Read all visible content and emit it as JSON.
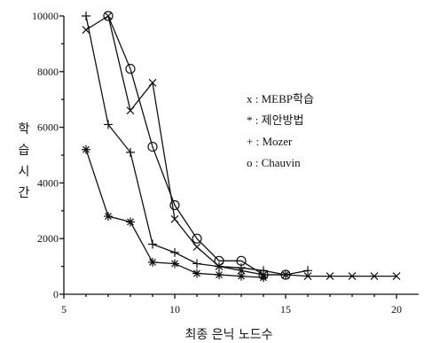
{
  "chart_data": {
    "type": "line",
    "xlabel": "최종 은닉 노드수",
    "ylabel": [
      "학",
      "습",
      "시",
      "간"
    ],
    "xlim": [
      5,
      21
    ],
    "ylim": [
      0,
      10000
    ],
    "xticks": [
      "5",
      "10",
      "15",
      "20"
    ],
    "yticks": [
      "0",
      "2000",
      "4000",
      "6000",
      "8000",
      "10000"
    ],
    "legend_position": "right",
    "series": [
      {
        "name": "x : MEBP학습",
        "marker": "x",
        "x": [
          6,
          7,
          8,
          9,
          10,
          11,
          12,
          13,
          14,
          15,
          16,
          17,
          18,
          19,
          20
        ],
        "y": [
          9500,
          10000,
          6600,
          7600,
          2700,
          1700,
          1000,
          850,
          700,
          700,
          650,
          650,
          650,
          650,
          650
        ]
      },
      {
        "name": "* : 제안방법",
        "marker": "*",
        "x": [
          6,
          7,
          8,
          9,
          10,
          11,
          12,
          13,
          14
        ],
        "y": [
          5200,
          2800,
          2600,
          1150,
          1100,
          750,
          700,
          650,
          600
        ]
      },
      {
        "name": "+ : Mozer",
        "marker": "+",
        "x": [
          6,
          7,
          8,
          9,
          10,
          11,
          12,
          13,
          14,
          15,
          16
        ],
        "y": [
          10000,
          6100,
          5100,
          1800,
          1500,
          1100,
          1000,
          950,
          850,
          700,
          850
        ]
      },
      {
        "name": "o : Chauvin",
        "marker": "o",
        "x": [
          7,
          8,
          9,
          10,
          11,
          12,
          13,
          14,
          15
        ],
        "y": [
          10000,
          8100,
          5300,
          3200,
          2000,
          1200,
          1200,
          700,
          700
        ]
      }
    ]
  }
}
